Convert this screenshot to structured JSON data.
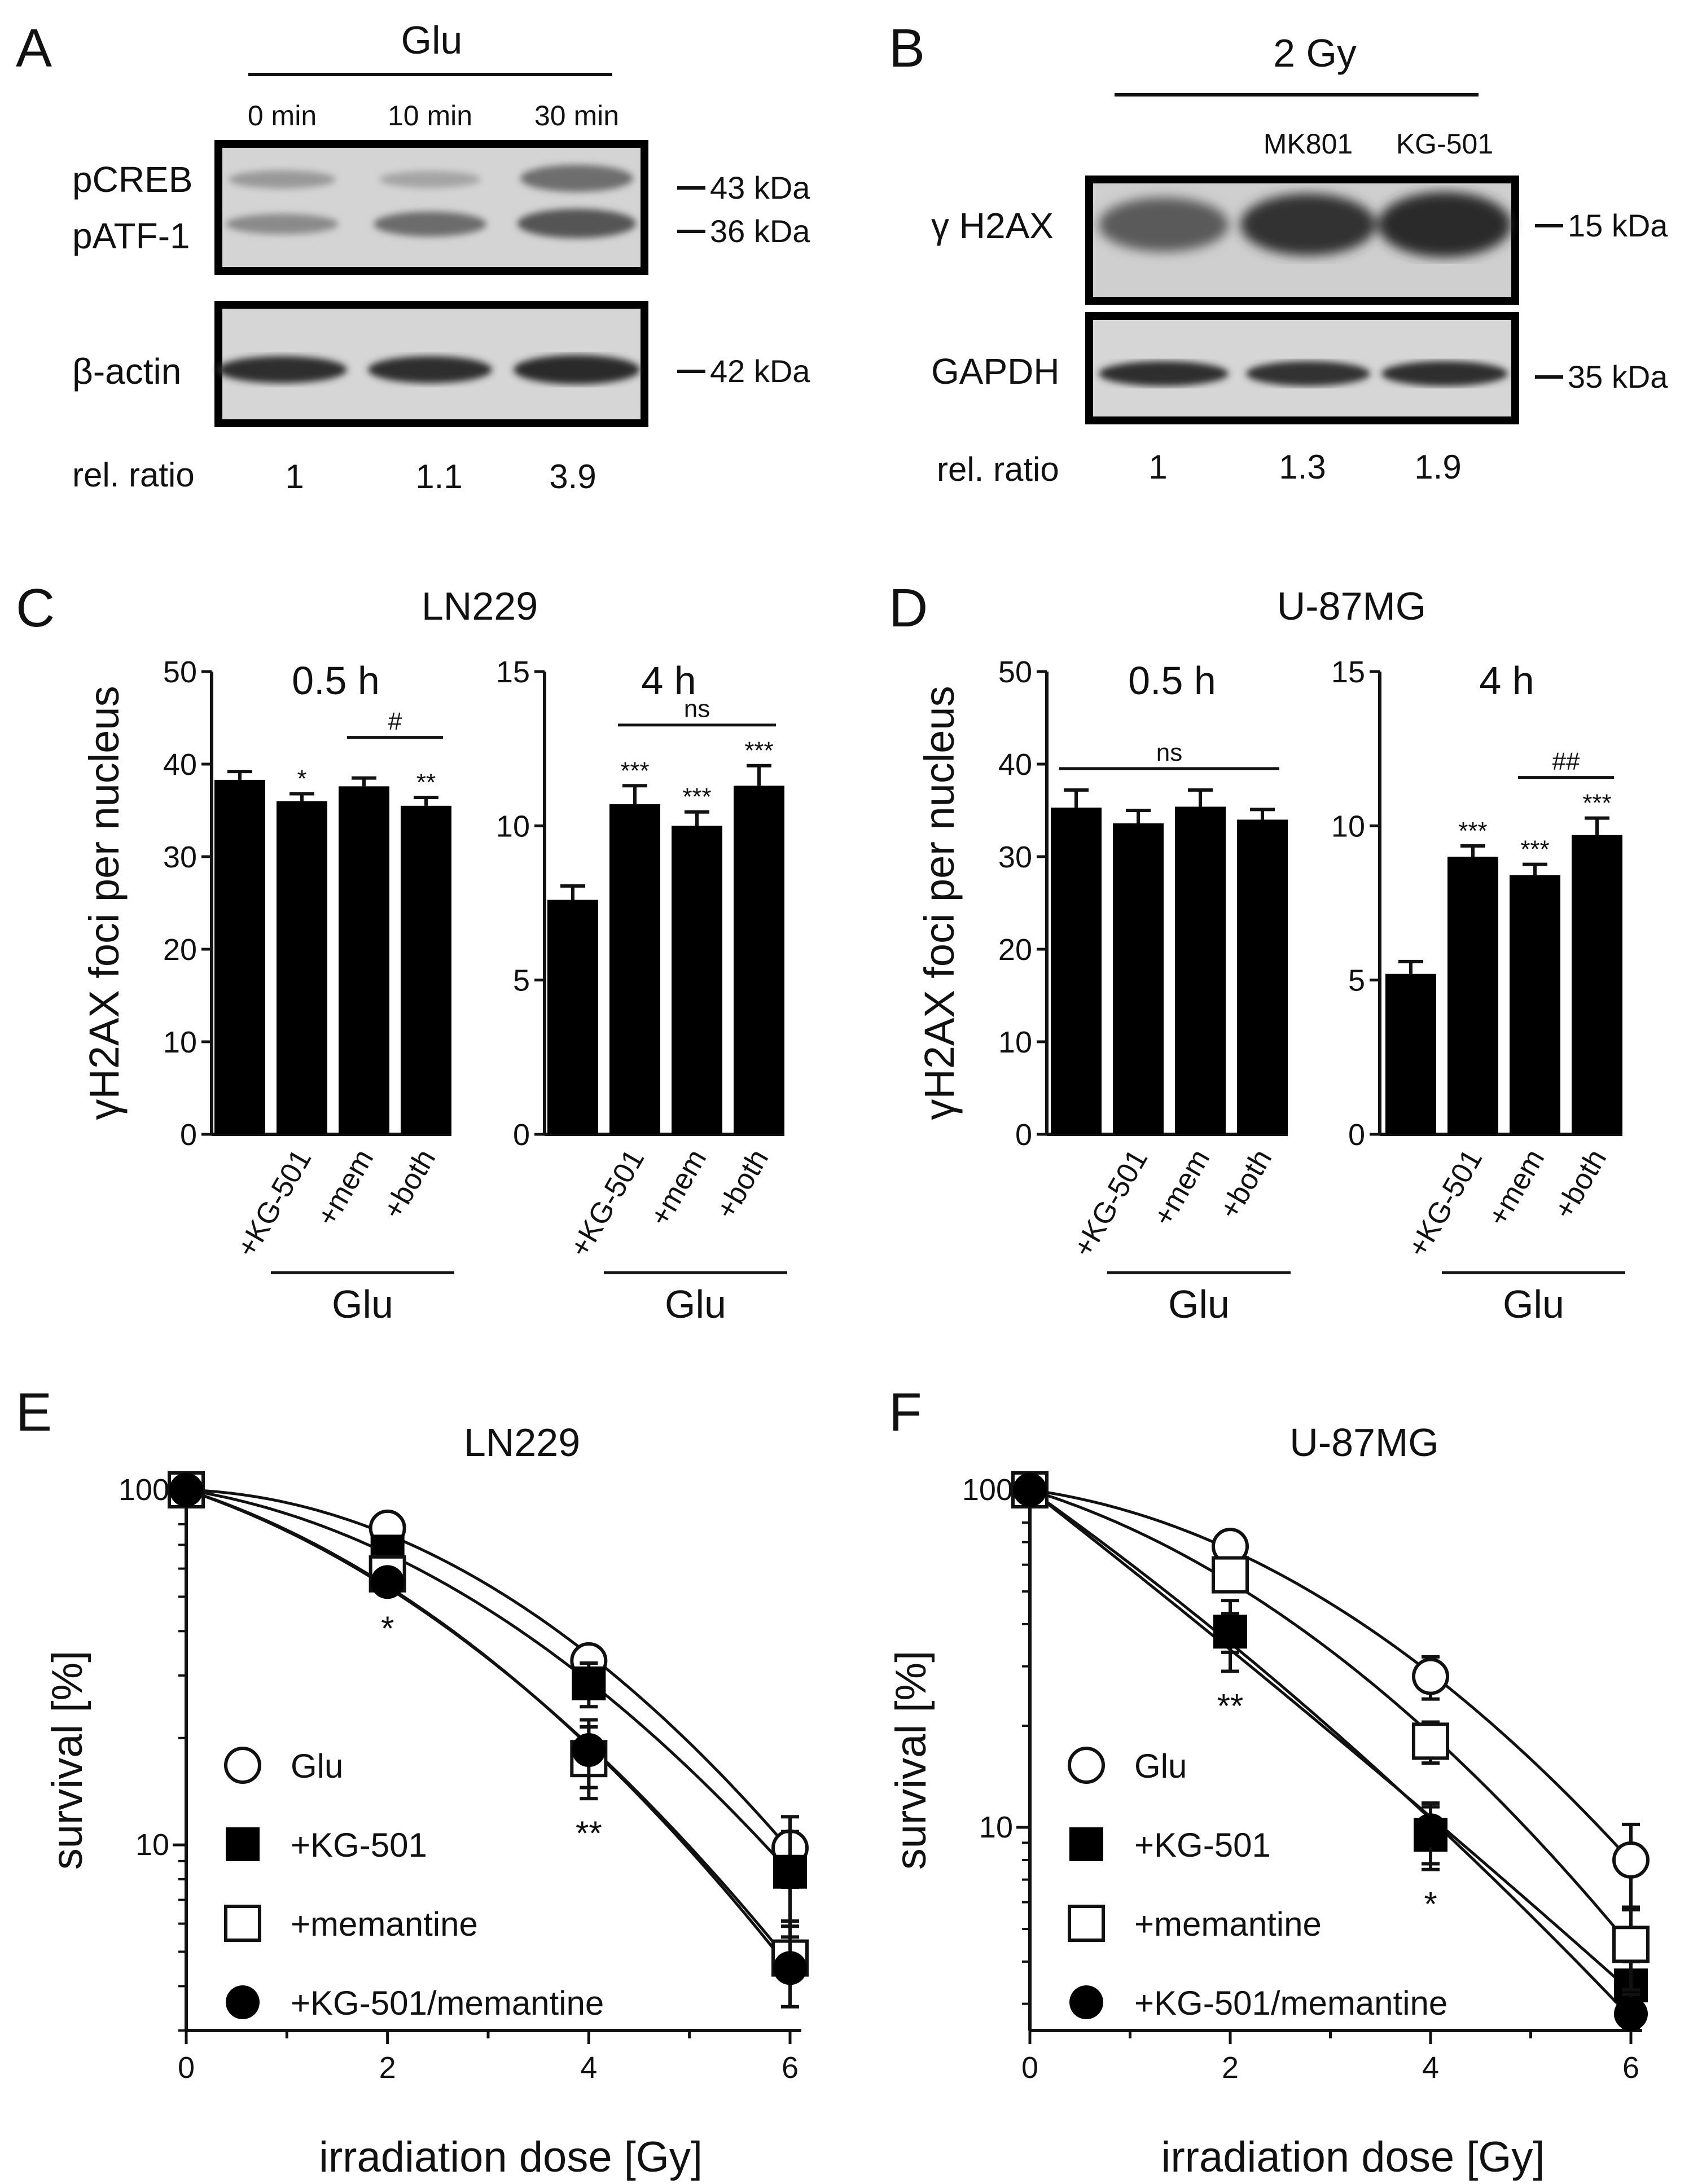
{
  "panels": {
    "A": {
      "letter": "A",
      "treatment": "Glu",
      "lanes": [
        "0 min",
        "10 min",
        "30 min"
      ],
      "blot1_labels": [
        "pCREB",
        "pATF-1"
      ],
      "blot1_kda": [
        "43 kDa",
        "36 kDa"
      ],
      "blot2_label": "β-actin",
      "blot2_kda": "42 kDa",
      "ratio_label": "rel. ratio",
      "ratios": [
        "1",
        "1.1",
        "3.9"
      ]
    },
    "B": {
      "letter": "B",
      "treatment": "2 Gy",
      "lanes": [
        "",
        "MK801",
        "KG-501"
      ],
      "blot1_label": "γ H2AX",
      "blot1_kda": "15 kDa",
      "blot2_label": "GAPDH",
      "blot2_kda": "35 kDa",
      "ratio_label": "rel. ratio",
      "ratios": [
        "1",
        "1.3",
        "1.9"
      ]
    },
    "C": {
      "letter": "C",
      "cell_line": "LN229"
    },
    "D": {
      "letter": "D",
      "cell_line": "U-87MG"
    },
    "E": {
      "letter": "E",
      "cell_line": "LN229"
    },
    "F": {
      "letter": "F",
      "cell_line": "U-87MG"
    }
  },
  "chart_data": [
    {
      "panel": "C-left",
      "type": "bar",
      "title": "0.5 h",
      "ylabel": "γH2AX foci per nucleus",
      "xgroup": "Glu",
      "categories": [
        "",
        "+KG-501",
        "+mem",
        "+both"
      ],
      "values": [
        38.3,
        36.0,
        37.6,
        35.5
      ],
      "errors": [
        0.9,
        0.8,
        0.9,
        0.9
      ],
      "sig": [
        "",
        "*",
        "",
        "**"
      ],
      "bracket": {
        "from": 2,
        "to": 3,
        "label": "#"
      },
      "ylim": [
        0,
        50
      ],
      "yticks": [
        0,
        10,
        20,
        30,
        40,
        50
      ]
    },
    {
      "panel": "C-right",
      "type": "bar",
      "title": "4 h",
      "xgroup": "Glu",
      "categories": [
        "",
        "+KG-501",
        "+mem",
        "+both"
      ],
      "values": [
        7.6,
        10.7,
        10.0,
        11.3
      ],
      "errors": [
        0.45,
        0.6,
        0.45,
        0.65
      ],
      "sig": [
        "",
        "***",
        "***",
        "***"
      ],
      "bracket": {
        "from": 1,
        "to": 3,
        "label": "ns"
      },
      "ylim": [
        0,
        15
      ],
      "yticks": [
        0,
        5,
        10,
        15
      ]
    },
    {
      "panel": "D-left",
      "type": "bar",
      "title": "0.5 h",
      "ylabel": "γH2AX foci per nucleus",
      "xgroup": "Glu",
      "categories": [
        "",
        "+KG-501",
        "+mem",
        "+both"
      ],
      "values": [
        35.3,
        33.6,
        35.4,
        34.0
      ],
      "errors": [
        1.9,
        1.4,
        1.8,
        1.1
      ],
      "sig": [
        "",
        "",
        "",
        ""
      ],
      "bracket": {
        "from": 0,
        "to": 3,
        "label": "ns"
      },
      "ylim": [
        0,
        50
      ],
      "yticks": [
        0,
        10,
        20,
        30,
        40,
        50
      ]
    },
    {
      "panel": "D-right",
      "type": "bar",
      "title": "4 h",
      "xgroup": "Glu",
      "categories": [
        "",
        "+KG-501",
        "+mem",
        "+both"
      ],
      "values": [
        5.2,
        9.0,
        8.4,
        9.7
      ],
      "errors": [
        0.4,
        0.35,
        0.35,
        0.55
      ],
      "sig": [
        "",
        "***",
        "***",
        "***"
      ],
      "bracket": {
        "from": 2,
        "to": 3,
        "label": "##"
      },
      "ylim": [
        0,
        15
      ],
      "yticks": [
        0,
        5,
        10,
        15
      ]
    },
    {
      "panel": "E",
      "type": "scatter",
      "title": "LN229",
      "xlabel": "irradiation dose [Gy]",
      "ylabel": "survival [%]",
      "x": [
        0,
        2,
        4,
        6
      ],
      "xticks": [
        0,
        2,
        4,
        6
      ],
      "xlim": [
        0,
        6
      ],
      "ylim": [
        3,
        100
      ],
      "yscale": "log",
      "yticks": [
        10,
        100
      ],
      "legend": "bottom-left",
      "series": [
        {
          "name": "Glu",
          "marker": "open-circle",
          "values": [
            100,
            78,
            33,
            9.8
          ],
          "errors": [
            0,
            3,
            3,
            2.2
          ]
        },
        {
          "name": "+KG-501",
          "marker": "filled-square",
          "values": [
            100,
            67,
            28.5,
            8.4
          ],
          "errors": [
            0,
            4,
            4,
            2.5
          ]
        },
        {
          "name": "+memantine",
          "marker": "open-square",
          "values": [
            100,
            58,
            17.5,
            4.8
          ],
          "errors": [
            0,
            4,
            4,
            1.3
          ]
        },
        {
          "name": "+KG-501/memantine",
          "marker": "filled-circle",
          "values": [
            100,
            55,
            18.5,
            4.5
          ],
          "errors": [
            0,
            4,
            4,
            1.0
          ]
        }
      ],
      "annotations": [
        {
          "x": 2,
          "text": "*"
        },
        {
          "x": 4,
          "text": "**"
        }
      ]
    },
    {
      "panel": "F",
      "type": "scatter",
      "title": "U-87MG",
      "xlabel": "irradiation dose [Gy]",
      "ylabel": "survival [%]",
      "x": [
        0,
        2,
        4,
        6
      ],
      "xticks": [
        0,
        2,
        4,
        6
      ],
      "xlim": [
        0,
        6
      ],
      "ylim": [
        2.5,
        100
      ],
      "yscale": "log",
      "yticks": [
        10,
        100
      ],
      "legend": "bottom-left",
      "series": [
        {
          "name": "Glu",
          "marker": "open-circle",
          "values": [
            100,
            68,
            28,
            8.0
          ],
          "errors": [
            0,
            3,
            4,
            2.2
          ]
        },
        {
          "name": "+KG-501",
          "marker": "filled-square",
          "values": [
            100,
            38,
            9.5,
            3.4
          ],
          "errors": [
            0,
            9,
            2,
            0.6
          ]
        },
        {
          "name": "+memantine",
          "marker": "open-square",
          "values": [
            100,
            56,
            18,
            4.5
          ],
          "errors": [
            0,
            4,
            2.5,
            1.2
          ]
        },
        {
          "name": "+KG-501/memantine",
          "marker": "filled-circle",
          "values": [
            100,
            38,
            9.8,
            2.8
          ],
          "errors": [
            0,
            5,
            2,
            0.4
          ]
        }
      ],
      "annotations": [
        {
          "x": 2,
          "text": "**"
        },
        {
          "x": 4,
          "text": "*"
        }
      ]
    }
  ]
}
